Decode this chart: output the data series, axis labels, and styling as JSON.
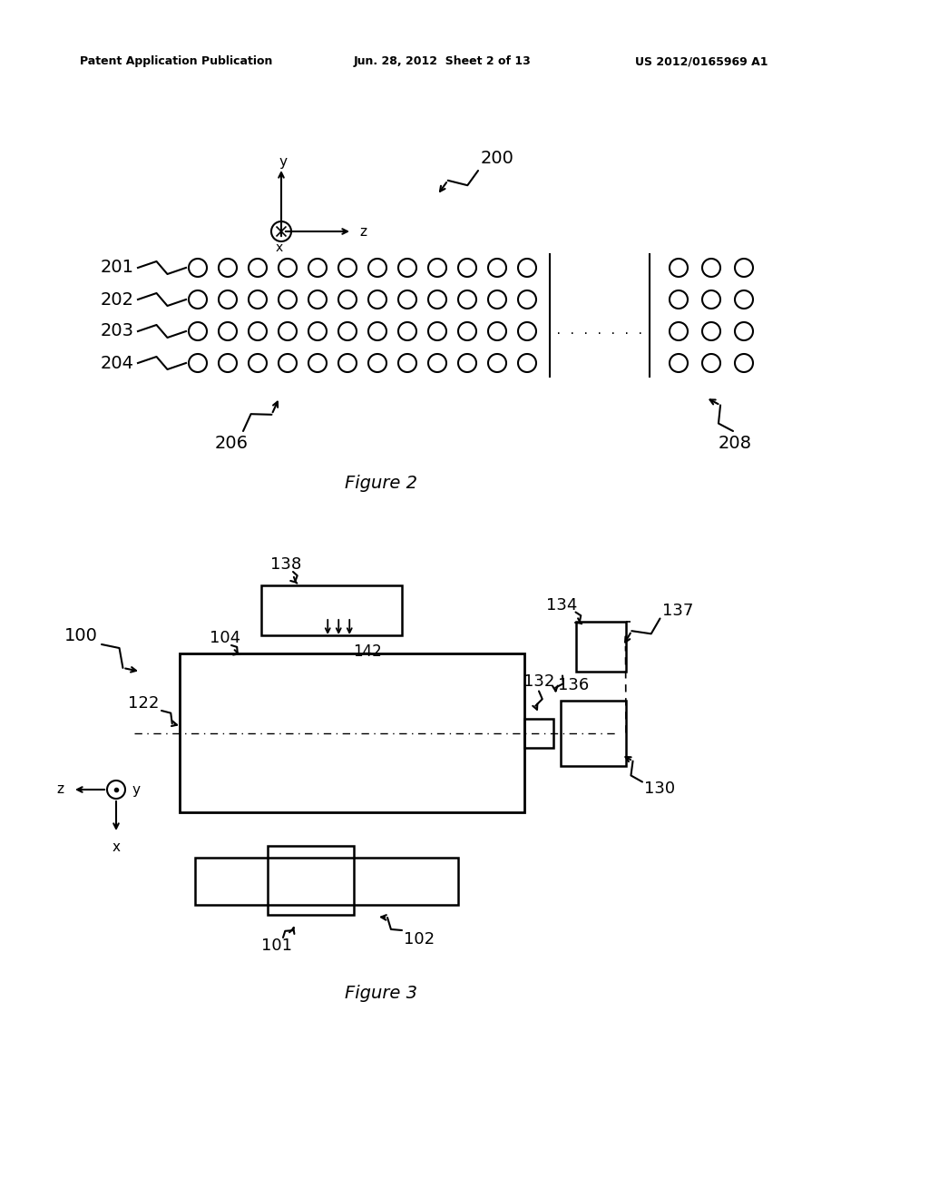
{
  "bg_color": "#ffffff",
  "header_left": "Patent Application Publication",
  "header_mid": "Jun. 28, 2012  Sheet 2 of 13",
  "header_right": "US 2012/0165969 A1",
  "fig2_caption": "Figure 2",
  "fig3_caption": "Figure 3"
}
